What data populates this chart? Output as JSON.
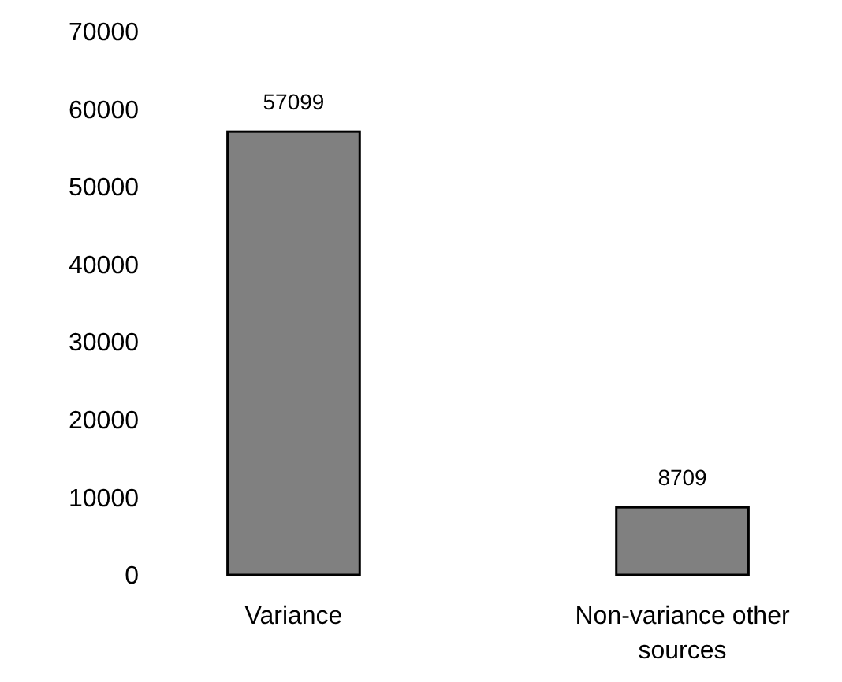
{
  "chart_data": {
    "type": "bar",
    "categories": [
      "Variance",
      "Non-variance other sources"
    ],
    "values": [
      57099,
      8709
    ],
    "color": "#808080",
    "ylim": [
      0,
      70000
    ],
    "yticks": [
      0,
      10000,
      20000,
      30000,
      40000,
      50000,
      60000,
      70000
    ],
    "data_labels": true,
    "grid": false
  }
}
